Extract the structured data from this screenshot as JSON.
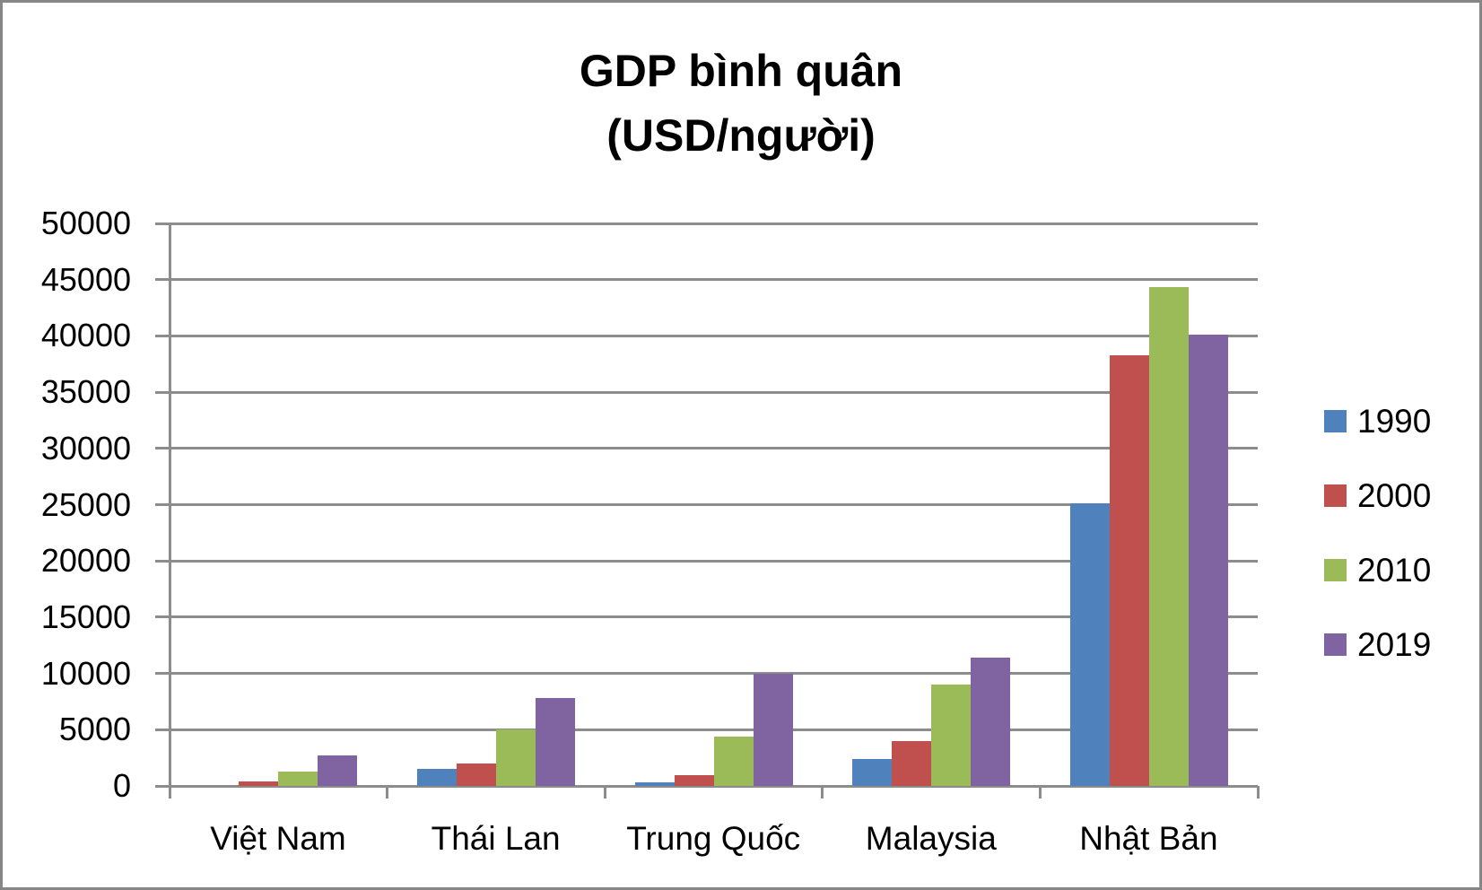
{
  "chart_data": {
    "type": "bar",
    "title": "GDP bình quân (USD/người)",
    "title_lines": [
      "GDP bình quân",
      "(USD/người)"
    ],
    "xlabel": "",
    "ylabel": "",
    "ylim": [
      0,
      50000
    ],
    "yticks": [
      50000,
      45000,
      40000,
      35000,
      30000,
      25000,
      20000,
      15000,
      10000,
      5000,
      0
    ],
    "grid": true,
    "legend_position": "right",
    "categories": [
      "Việt Nam",
      "Thái Lan",
      "Trung Quốc",
      "Malaysia",
      "Nhật Bản"
    ],
    "series": [
      {
        "name": "1990",
        "color": "#4F81BD",
        "values": [
          0,
          1500,
          320,
          2400,
          25100
        ]
      },
      {
        "name": "2000",
        "color": "#C0504D",
        "values": [
          400,
          2000,
          960,
          4000,
          38300
        ]
      },
      {
        "name": "2010",
        "color": "#9BBB59",
        "values": [
          1300,
          5050,
          4400,
          9000,
          44300
        ]
      },
      {
        "name": "2019",
        "color": "#8064A2",
        "values": [
          2700,
          7800,
          10000,
          11400,
          40100
        ]
      }
    ]
  },
  "colors": {
    "border": "#868686",
    "grid": "#8c8c8c"
  }
}
